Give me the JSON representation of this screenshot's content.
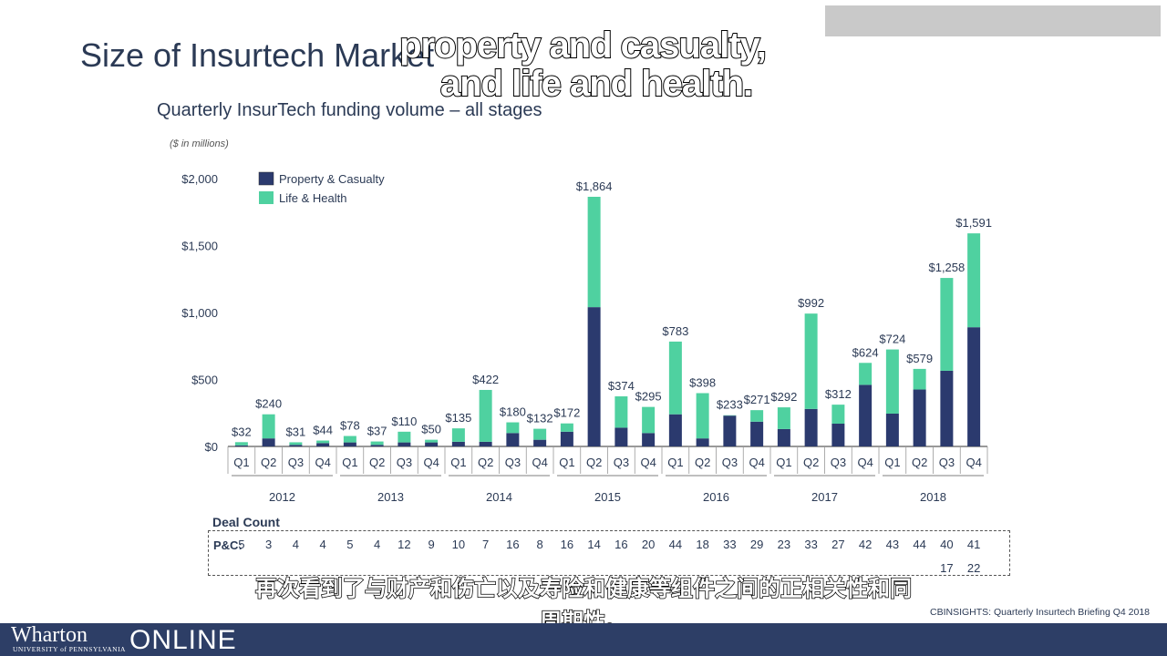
{
  "slide": {
    "title": "Size of Insurtech Market",
    "chart_title": "Quarterly InsurTech funding volume – all stages",
    "units": "($ in millions)"
  },
  "subtitles": {
    "en_line1": "property and casualty,",
    "en_line2": "and life and health.",
    "cn_line1": "再次看到了与财产和伤亡以及寿险和健康等组件之间的正相关性和同",
    "cn_line2": "周期性。"
  },
  "deal_count": {
    "title": "Deal Count",
    "pc_label": "P&C:",
    "pc_values": [
      "5",
      "3",
      "4",
      "4",
      "5",
      "4",
      "12",
      "9",
      "10",
      "7",
      "16",
      "8",
      "16",
      "14",
      "16",
      "20",
      "44",
      "18",
      "33",
      "29",
      "23",
      "33",
      "27",
      "42",
      "43",
      "44",
      "40",
      "41"
    ],
    "lh_values_visible": [
      "17",
      "22"
    ]
  },
  "source": "CBINSIGHTS: Quarterly Insurtech Briefing Q4 2018",
  "footer": {
    "brand": "Wharton",
    "university": "UNIVERSITY of PENNSYLVANIA",
    "online": "ONLINE"
  },
  "colors": {
    "property_casualty": "#2b3a6e",
    "life_health": "#4fd1a0",
    "footer_bg": "#2d3e66"
  },
  "chart_data": {
    "type": "bar",
    "stacked": true,
    "title": "Quarterly InsurTech funding volume – all stages",
    "ylabel": "($ in millions)",
    "ylim": [
      0,
      2000
    ],
    "yticks": [
      "$0",
      "$500",
      "$1,000",
      "$1,500",
      "$2,000"
    ],
    "ytick_values": [
      0,
      500,
      1000,
      1500,
      2000
    ],
    "categories": [
      "Q1",
      "Q2",
      "Q3",
      "Q4",
      "Q1",
      "Q2",
      "Q3",
      "Q4",
      "Q1",
      "Q2",
      "Q3",
      "Q4",
      "Q1",
      "Q2",
      "Q3",
      "Q4",
      "Q1",
      "Q2",
      "Q3",
      "Q4",
      "Q1",
      "Q2",
      "Q3",
      "Q4",
      "Q1",
      "Q2",
      "Q3",
      "Q4"
    ],
    "years": [
      "2012",
      "2013",
      "2014",
      "2015",
      "2016",
      "2017",
      "2018"
    ],
    "totals": [
      32,
      240,
      31,
      44,
      78,
      37,
      110,
      50,
      135,
      422,
      180,
      132,
      172,
      1864,
      374,
      295,
      783,
      398,
      233,
      271,
      292,
      992,
      312,
      624,
      724,
      579,
      1258,
      1591
    ],
    "total_labels": [
      "$32",
      "$240",
      "$31",
      "$44",
      "$78",
      "$37",
      "$110",
      "$50",
      "$135",
      "$422",
      "$180",
      "$132",
      "$172",
      "$1,864",
      "$374",
      "$295",
      "$783",
      "$398",
      "$233",
      "$271",
      "$292",
      "$992",
      "$312",
      "$624",
      "$724",
      "$579",
      "$1,258",
      "$1,591"
    ],
    "series": [
      {
        "name": "Property & Casualty",
        "values": [
          8,
          60,
          12,
          25,
          30,
          12,
          30,
          30,
          35,
          35,
          100,
          50,
          110,
          1040,
          140,
          100,
          240,
          60,
          230,
          185,
          130,
          280,
          170,
          460,
          245,
          425,
          565,
          890
        ]
      },
      {
        "name": "Life & Health",
        "values": [
          24,
          180,
          19,
          19,
          48,
          25,
          80,
          20,
          100,
          387,
          80,
          82,
          62,
          824,
          234,
          195,
          543,
          338,
          3,
          86,
          162,
          712,
          142,
          164,
          479,
          154,
          693,
          701
        ]
      }
    ],
    "legend": "top-left",
    "grid": false
  }
}
